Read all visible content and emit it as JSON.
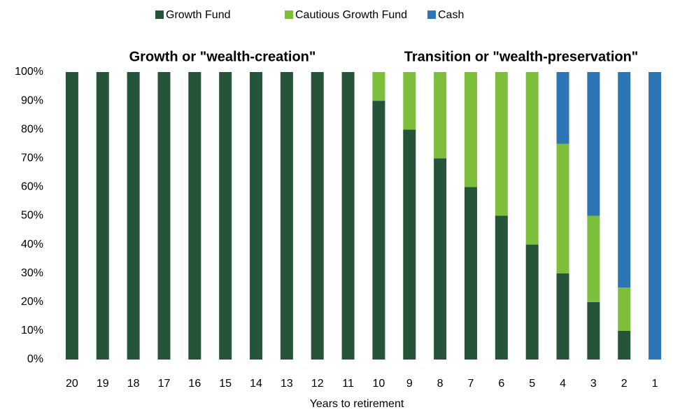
{
  "chart_data": {
    "type": "stacked_bar",
    "categories": [
      "20",
      "19",
      "18",
      "17",
      "16",
      "15",
      "14",
      "13",
      "12",
      "11",
      "10",
      "9",
      "8",
      "7",
      "6",
      "5",
      "4",
      "3",
      "2",
      "1"
    ],
    "series": [
      {
        "name": "Growth Fund",
        "color": "#265438",
        "values": [
          100,
          100,
          100,
          100,
          100,
          100,
          100,
          100,
          100,
          100,
          90,
          80,
          70,
          60,
          50,
          40,
          30,
          20,
          10,
          0
        ]
      },
      {
        "name": "Cautious Growth Fund",
        "color": "#7dbf3a",
        "values": [
          0,
          0,
          0,
          0,
          0,
          0,
          0,
          0,
          0,
          0,
          10,
          20,
          30,
          40,
          50,
          60,
          45,
          30,
          15,
          0
        ]
      },
      {
        "name": "Cash",
        "color": "#2e75b6",
        "values": [
          0,
          0,
          0,
          0,
          0,
          0,
          0,
          0,
          0,
          0,
          0,
          0,
          0,
          0,
          0,
          0,
          25,
          50,
          75,
          100
        ]
      }
    ],
    "ylim": [
      0,
      100
    ],
    "yticks": [
      {
        "value": 0,
        "label": "0%"
      },
      {
        "value": 10,
        "label": "10%"
      },
      {
        "value": 20,
        "label": "20%"
      },
      {
        "value": 30,
        "label": "30%"
      },
      {
        "value": 40,
        "label": "40%"
      },
      {
        "value": 50,
        "label": "50%"
      },
      {
        "value": 60,
        "label": "60%"
      },
      {
        "value": 70,
        "label": "70%"
      },
      {
        "value": 80,
        "label": "80%"
      },
      {
        "value": 90,
        "label": "90%"
      },
      {
        "value": 100,
        "label": "100%"
      }
    ],
    "x_label": "Years to retirement",
    "annotations": [
      "Growth or \"wealth-creation\"",
      "Transition or \"wealth-preservation\""
    ],
    "grid": false,
    "legend": "top"
  }
}
